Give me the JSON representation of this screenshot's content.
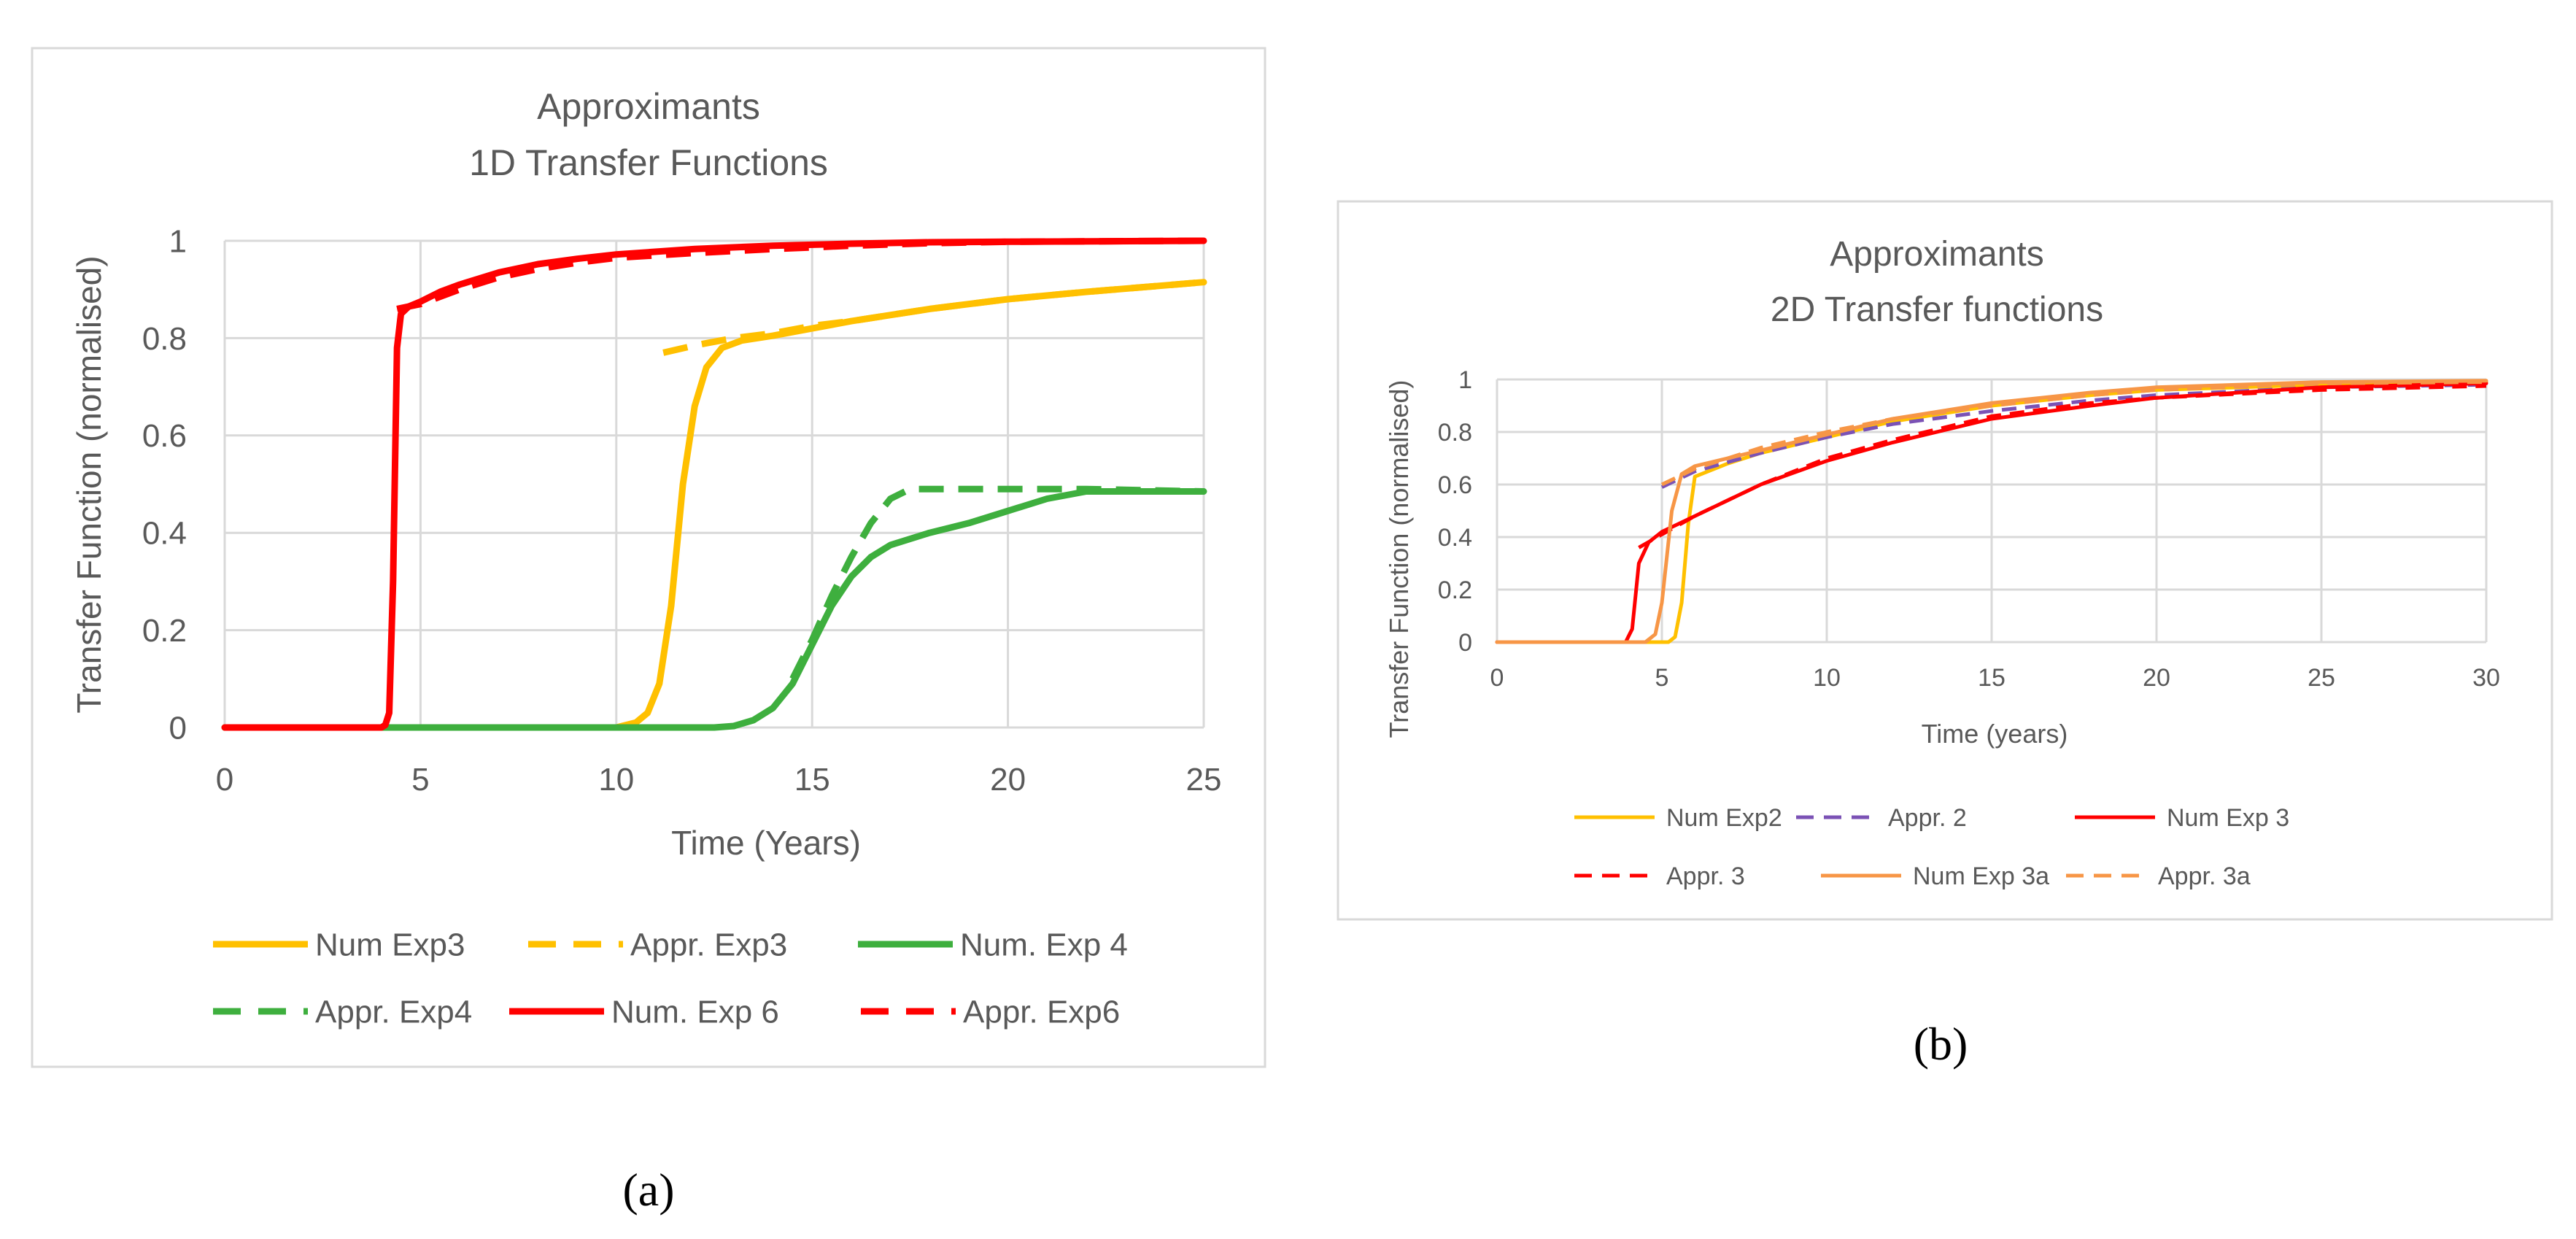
{
  "chart_data": [
    {
      "type": "line",
      "title": "Approximants",
      "subtitle": "1D Transfer Functions",
      "xlabel": "Time (Years)",
      "ylabel": "Transfer Function (normalised)",
      "xlim": [
        0,
        25
      ],
      "ylim": [
        0,
        1
      ],
      "xticks": [
        "0",
        "5",
        "10",
        "15",
        "20",
        "25"
      ],
      "yticks": [
        "0",
        "0.2",
        "0.4",
        "0.6",
        "0.8",
        "1"
      ],
      "grid": true,
      "legend": "bottom",
      "caption": "(a)",
      "series": [
        {
          "name": "Num Exp3",
          "color": "#FFC000",
          "dash": "solid",
          "x": [
            0,
            10,
            10.5,
            10.8,
            11.1,
            11.4,
            11.7,
            12,
            12.3,
            12.7,
            13.2,
            14,
            15,
            16,
            18,
            20,
            22,
            25
          ],
          "y": [
            0,
            0,
            0.01,
            0.03,
            0.09,
            0.25,
            0.5,
            0.66,
            0.74,
            0.78,
            0.795,
            0.805,
            0.82,
            0.835,
            0.86,
            0.88,
            0.895,
            0.915
          ]
        },
        {
          "name": "Appr. Exp3",
          "color": "#FFC000",
          "dash": "dashed",
          "x": [
            11.2,
            12,
            13,
            14,
            15,
            16,
            18,
            20,
            22,
            25
          ],
          "y": [
            0.77,
            0.785,
            0.8,
            0.81,
            0.825,
            0.835,
            0.86,
            0.88,
            0.895,
            0.915
          ]
        },
        {
          "name": "Num. Exp 4",
          "color": "#3EAF3E",
          "dash": "solid",
          "x": [
            0,
            12.5,
            13,
            13.5,
            14,
            14.5,
            15,
            15.5,
            16,
            16.5,
            17,
            18,
            19,
            20,
            21,
            22,
            25
          ],
          "y": [
            0,
            0,
            0.003,
            0.015,
            0.04,
            0.09,
            0.17,
            0.25,
            0.31,
            0.35,
            0.375,
            0.4,
            0.42,
            0.445,
            0.47,
            0.485,
            0.485
          ]
        },
        {
          "name": "Appr. Exp4",
          "color": "#3EAF3E",
          "dash": "dashed",
          "x": [
            14.5,
            15,
            15.5,
            16,
            16.5,
            17,
            17.5,
            18,
            20,
            22,
            25
          ],
          "y": [
            0.1,
            0.18,
            0.27,
            0.35,
            0.42,
            0.47,
            0.49,
            0.49,
            0.49,
            0.49,
            0.485
          ]
        },
        {
          "name": "Num. Exp 6",
          "color": "#FF0000",
          "dash": "solid",
          "x": [
            0,
            4,
            4.1,
            4.2,
            4.3,
            4.4,
            4.5,
            4.7,
            5,
            5.5,
            6,
            7,
            8,
            9,
            10,
            12,
            14,
            16,
            18,
            20,
            25
          ],
          "y": [
            0,
            0,
            0.005,
            0.03,
            0.3,
            0.78,
            0.85,
            0.865,
            0.875,
            0.895,
            0.91,
            0.935,
            0.952,
            0.963,
            0.972,
            0.983,
            0.99,
            0.994,
            0.997,
            0.998,
            1
          ]
        },
        {
          "name": "Appr. Exp6",
          "color": "#FF0000",
          "dash": "dashed",
          "x": [
            4.4,
            5,
            6,
            7,
            8,
            9,
            10,
            12,
            14,
            16,
            18,
            20,
            25
          ],
          "y": [
            0.86,
            0.87,
            0.9,
            0.925,
            0.942,
            0.955,
            0.965,
            0.975,
            0.983,
            0.99,
            0.995,
            0.998,
            1
          ]
        }
      ]
    },
    {
      "type": "line",
      "title": "Approximants",
      "subtitle": "2D Transfer functions",
      "xlabel": "Time (years)",
      "ylabel": "Transfer Function (normalised)",
      "xlim": [
        0,
        30
      ],
      "ylim": [
        0,
        1
      ],
      "xticks": [
        "0",
        "5",
        "10",
        "15",
        "20",
        "25",
        "30"
      ],
      "yticks": [
        "0",
        "0.2",
        "0.4",
        "0.6",
        "0.8",
        "1"
      ],
      "grid": true,
      "legend": "bottom",
      "caption": "(b)",
      "series": [
        {
          "name": "Num Exp2",
          "color": "#FFC000",
          "dash": "solid",
          "x": [
            0,
            5.2,
            5.4,
            5.6,
            5.8,
            6,
            7,
            8,
            10,
            12,
            15,
            18,
            20,
            25,
            30
          ],
          "y": [
            0,
            0,
            0.02,
            0.15,
            0.45,
            0.63,
            0.68,
            0.72,
            0.78,
            0.84,
            0.9,
            0.94,
            0.96,
            0.98,
            0.99
          ]
        },
        {
          "name": "Appr. 2",
          "color": "#7B52B5",
          "dash": "dashed",
          "x": [
            5,
            6,
            8,
            10,
            12,
            15,
            18,
            20,
            25,
            30
          ],
          "y": [
            0.59,
            0.65,
            0.72,
            0.78,
            0.83,
            0.88,
            0.92,
            0.94,
            0.97,
            0.98
          ]
        },
        {
          "name": "Num Exp 3",
          "color": "#FF0000",
          "dash": "solid",
          "x": [
            0,
            3.9,
            4.1,
            4.3,
            4.6,
            5,
            6,
            7,
            8,
            10,
            12,
            15,
            18,
            20,
            25,
            30
          ],
          "y": [
            0,
            0,
            0.05,
            0.3,
            0.38,
            0.42,
            0.48,
            0.54,
            0.6,
            0.69,
            0.76,
            0.85,
            0.9,
            0.93,
            0.97,
            0.985
          ]
        },
        {
          "name": "Appr. 3",
          "color": "#FF0000",
          "dash": "dashed",
          "x": [
            4.3,
            5,
            6,
            8,
            10,
            12,
            15,
            18,
            20,
            25,
            30
          ],
          "y": [
            0.36,
            0.41,
            0.48,
            0.6,
            0.7,
            0.77,
            0.86,
            0.91,
            0.93,
            0.96,
            0.975
          ]
        },
        {
          "name": "Num Exp 3a",
          "color": "#F79646",
          "dash": "solid",
          "x": [
            0,
            4.5,
            4.8,
            5,
            5.3,
            5.6,
            6,
            8,
            10,
            12,
            15,
            18,
            20,
            25,
            30
          ],
          "y": [
            0,
            0,
            0.03,
            0.15,
            0.5,
            0.64,
            0.67,
            0.73,
            0.79,
            0.85,
            0.91,
            0.95,
            0.97,
            0.99,
            0.995
          ]
        },
        {
          "name": "Appr. 3a",
          "color": "#F79646",
          "dash": "dashed",
          "x": [
            5,
            6,
            8,
            10,
            12,
            15,
            18,
            20,
            25,
            30
          ],
          "y": [
            0.6,
            0.66,
            0.74,
            0.8,
            0.85,
            0.9,
            0.94,
            0.96,
            0.985,
            0.99
          ]
        }
      ]
    }
  ]
}
